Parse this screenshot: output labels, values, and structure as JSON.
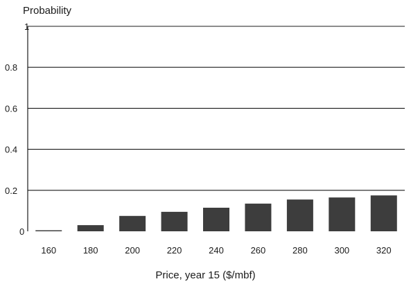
{
  "chart_data": {
    "type": "bar",
    "ylabel": "Probability",
    "xlabel": "Price, year 15 ($/mbf)",
    "categories": [
      "160",
      "180",
      "200",
      "220",
      "240",
      "260",
      "280",
      "300",
      "320"
    ],
    "values": [
      0.005,
      0.03,
      0.075,
      0.095,
      0.115,
      0.135,
      0.155,
      0.165,
      0.175
    ],
    "yticks": [
      "0",
      "0.2",
      "0.4",
      "0.6",
      "0.8",
      "1"
    ],
    "ylim": [
      0,
      1
    ],
    "grid": true,
    "bar_color": "#3d3d3d"
  }
}
